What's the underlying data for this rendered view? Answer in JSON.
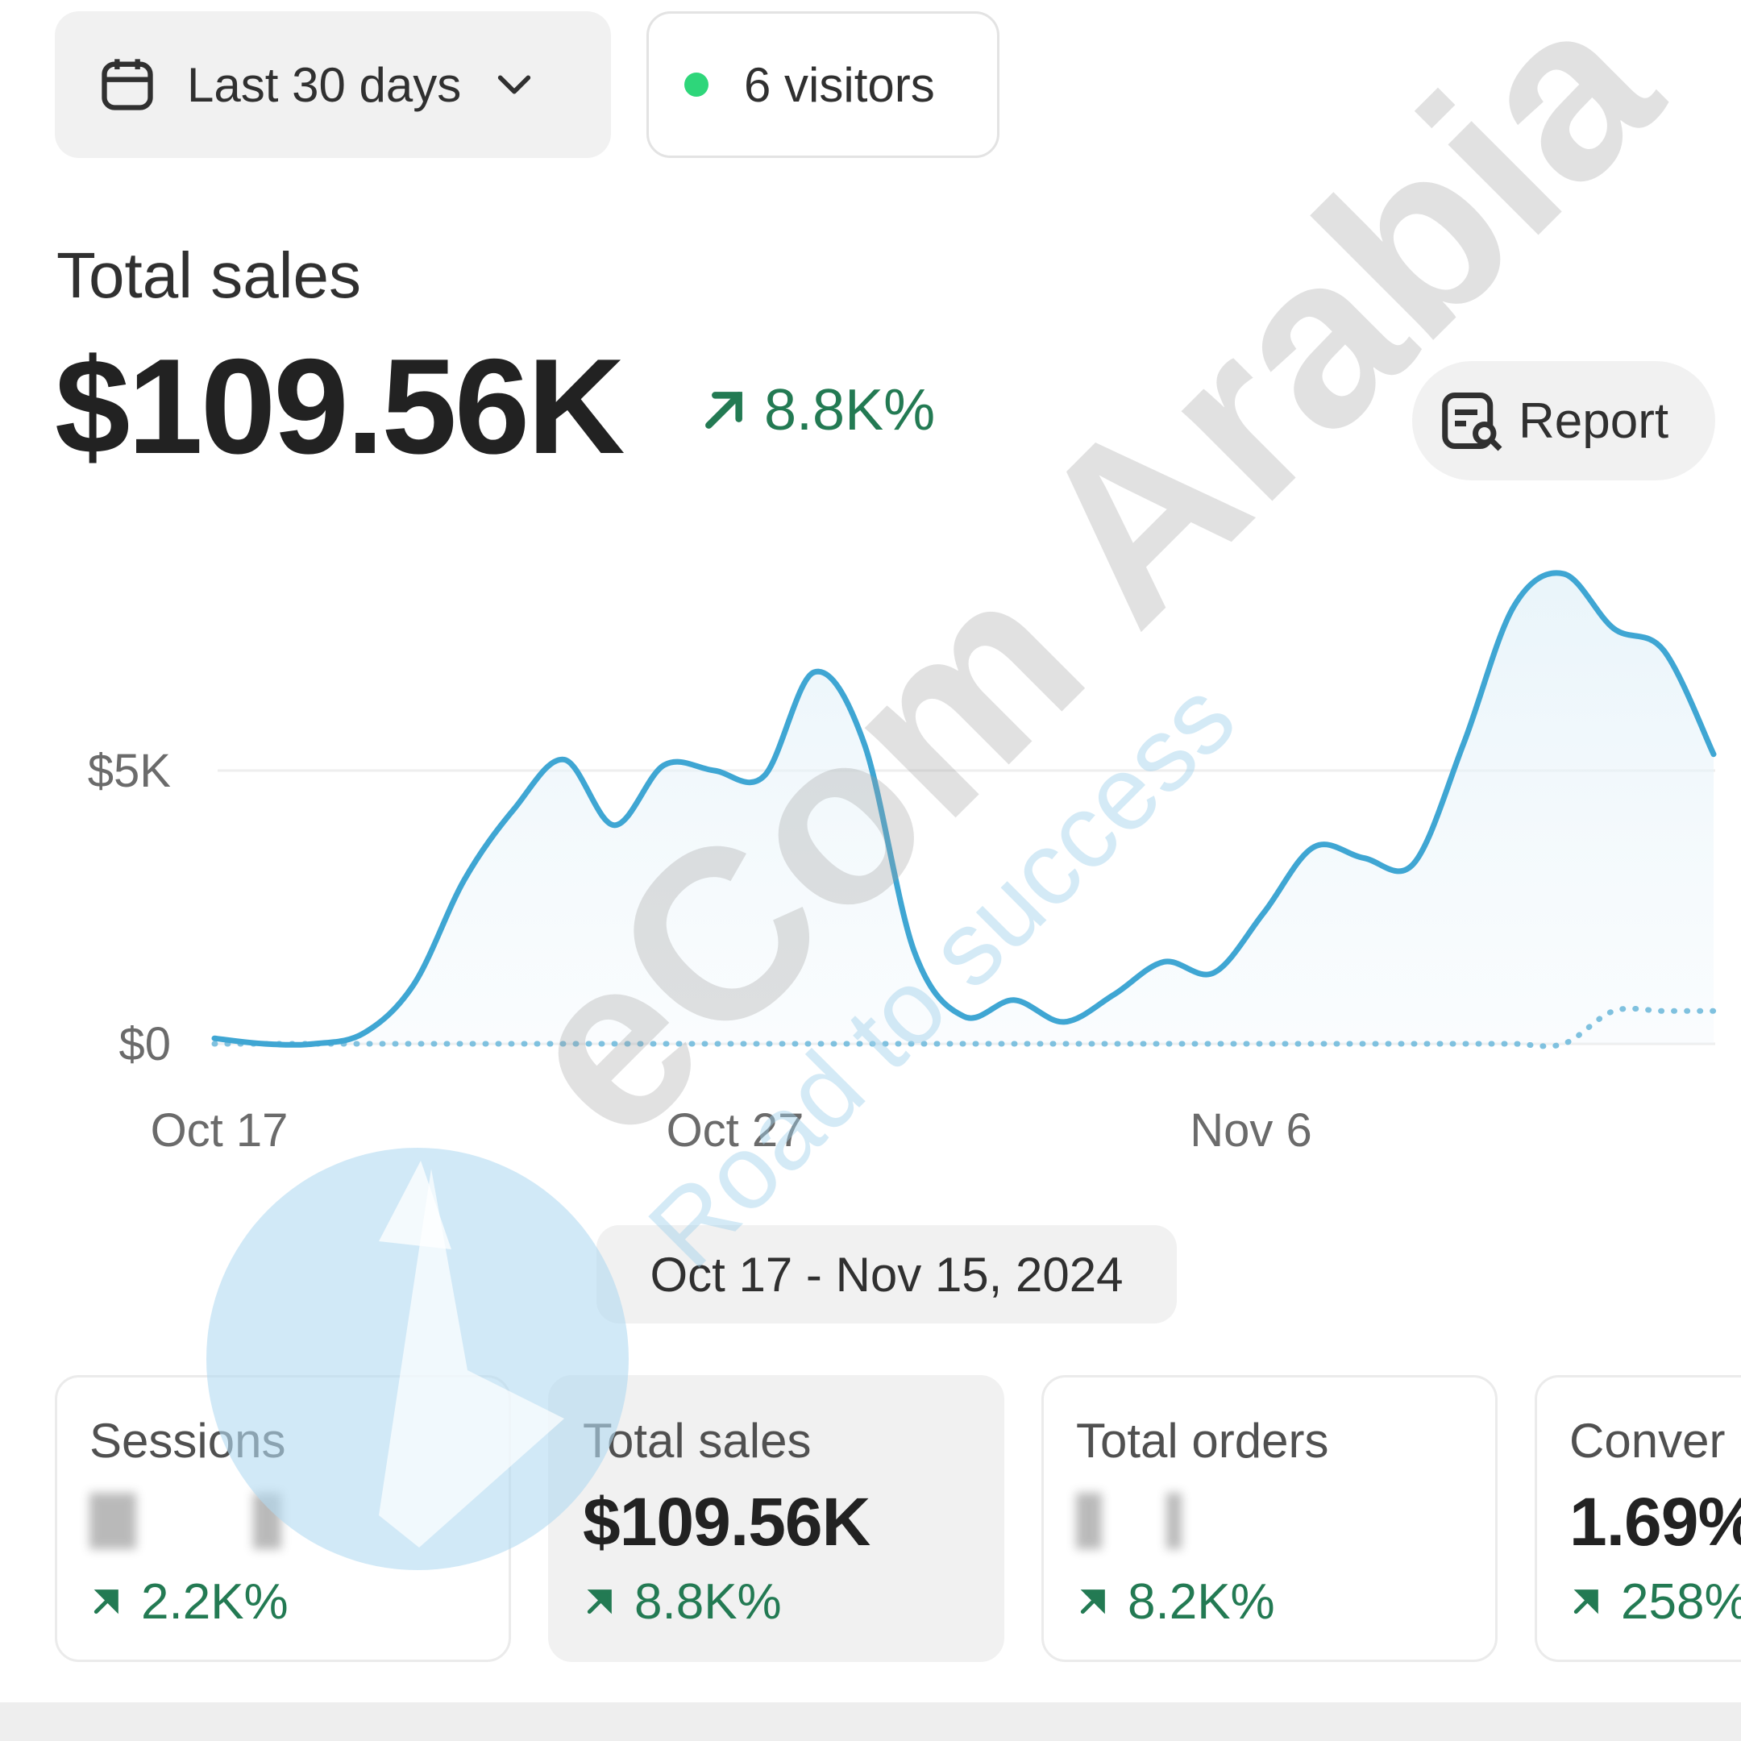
{
  "toolbar": {
    "date_range_label": "Last 30 days",
    "visitors_label": "6 visitors",
    "visitors_dot_color": "#2ed67a"
  },
  "metric": {
    "label": "Total sales",
    "value": "$109.56K",
    "change": "8.8K%",
    "report_label": "Report"
  },
  "chart_data": {
    "type": "line",
    "y_ticks": [
      "$5K",
      "$0"
    ],
    "x_ticks": [
      "Oct 17",
      "Oct 27",
      "Nov 6"
    ],
    "ylim": [
      0,
      8600
    ],
    "grid": true,
    "line_color": "#3fa6d3",
    "series": [
      {
        "values": [
          100,
          0,
          0,
          200,
          1100,
          3000,
          4300,
          5200,
          4000,
          5100,
          5000,
          4900,
          6800,
          5500,
          1700,
          500,
          800,
          400,
          900,
          1500,
          1300,
          2400,
          3600,
          3400,
          3300,
          5500,
          8000,
          8600,
          7600,
          7200,
          5300
        ]
      },
      {
        "values": [
          0,
          0,
          0,
          0,
          0,
          0,
          0,
          0,
          0,
          0,
          0,
          0,
          0,
          0,
          0,
          0,
          0,
          0,
          0,
          0,
          0,
          0,
          0,
          0,
          0,
          0,
          0,
          0,
          600,
          600,
          600
        ]
      }
    ],
    "date_range": "Oct 17 - Nov 15, 2024"
  },
  "cards": [
    {
      "title": "Sessions",
      "value": "",
      "change": "2.2K%"
    },
    {
      "title": "Total sales",
      "value": "$109.56K",
      "change": "8.8K%"
    },
    {
      "title": "Total orders",
      "value": "",
      "change": "8.2K%"
    },
    {
      "title": "Conver",
      "value": "1.69%",
      "change": "258%"
    }
  ],
  "watermark": {
    "brand": "eCom Arabia",
    "tagline": "Road to success"
  }
}
